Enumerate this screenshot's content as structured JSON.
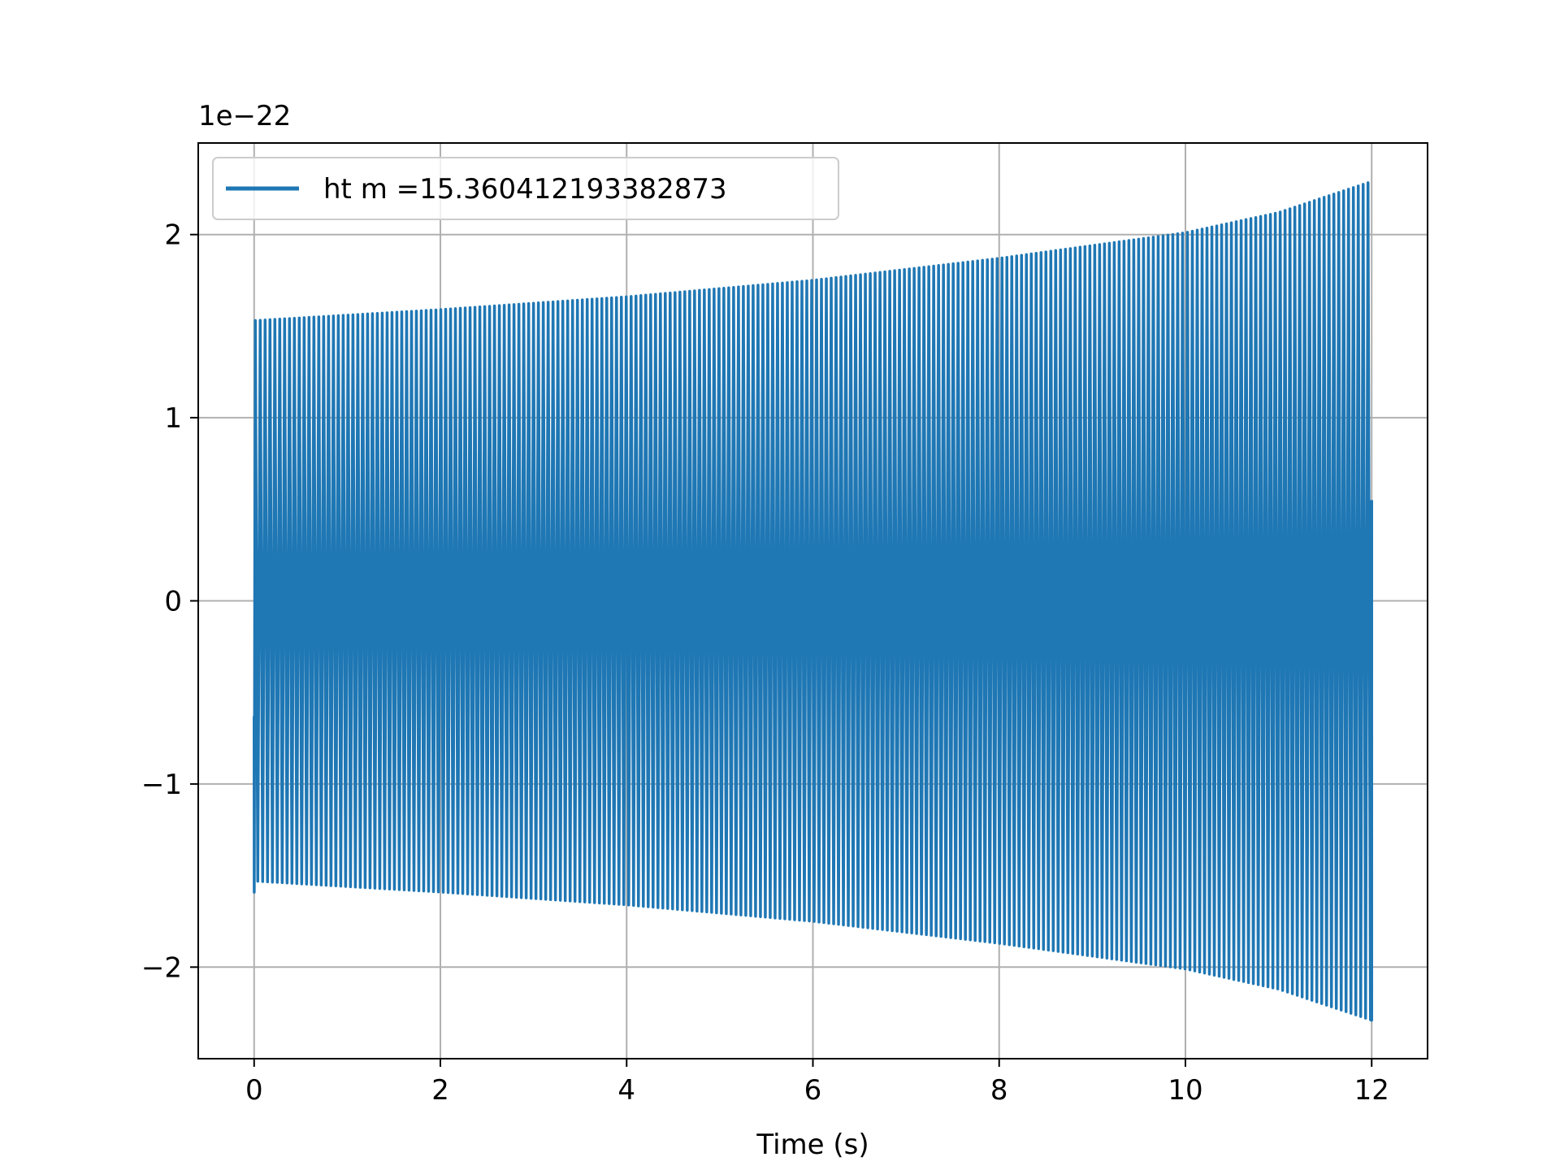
{
  "chart_data": {
    "type": "line",
    "title": "",
    "xlabel": "Time (s)",
    "ylabel": "",
    "y_offset_text": "1e−22",
    "xlim": [
      -0.6,
      12.6
    ],
    "ylim": [
      -2.5,
      2.5
    ],
    "x_ticks": [
      0,
      2,
      4,
      6,
      8,
      10,
      12
    ],
    "x_tick_labels": [
      "0",
      "2",
      "4",
      "6",
      "8",
      "10",
      "12"
    ],
    "y_ticks": [
      -2,
      -1,
      0,
      1,
      2
    ],
    "y_tick_labels": [
      "−2",
      "−1",
      "0",
      "1",
      "2"
    ],
    "grid": true,
    "legend": {
      "placement": "upper-left"
    },
    "series": [
      {
        "name": "ht m =15.360412193382873",
        "color": "#1f77b4",
        "t_start": 0,
        "t_end": 12,
        "start_value": -0.63,
        "end_value": 0.55,
        "envelope": {
          "t": [
            0,
            2,
            4,
            6,
            8,
            10,
            11,
            12
          ],
          "amplitude": [
            1.53,
            1.59,
            1.66,
            1.75,
            1.87,
            2.01,
            2.12,
            2.29
          ]
        }
      }
    ]
  }
}
